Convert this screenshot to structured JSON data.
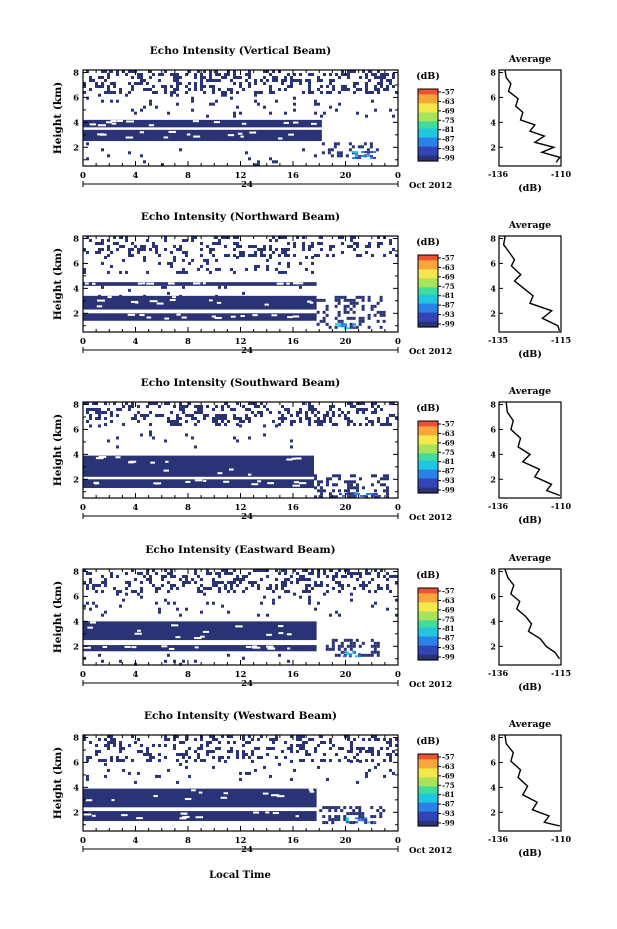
{
  "figure": {
    "xlabel": "Local Time",
    "colorbar_unit": "(dB)",
    "colorbar_ticks": [
      "-57",
      "-63",
      "-69",
      "-75",
      "-81",
      "-87",
      "-93",
      "-99"
    ],
    "date_label": "Oct 2012",
    "day_label": "24",
    "palette": [
      "#2a3376",
      "#3344b6",
      "#2a82e8",
      "#21c6e1",
      "#3fdc9e",
      "#a8e35a",
      "#f5e84a",
      "#f7a63b",
      "#ee5233"
    ]
  },
  "chart_data": [
    {
      "type": "heatmap",
      "title": "Echo Intensity (Vertical Beam)",
      "ylabel": "Height (km)",
      "x_ticks": [
        "0",
        "4",
        "8",
        "12",
        "16",
        "20",
        "0"
      ],
      "y_ticks": [
        "2",
        "4",
        "6",
        "8"
      ],
      "xlim": [
        0,
        24
      ],
      "ylim": [
        0.5,
        8.2
      ],
      "solid_bands": [
        [
          2.5,
          3.4,
          0,
          18.2
        ],
        [
          3.6,
          4.2,
          0,
          18.2
        ]
      ],
      "scatter_bands": [
        [
          6.3,
          8.2,
          0,
          24,
          0.33
        ],
        [
          4.4,
          6.3,
          0,
          24,
          0.05
        ],
        [
          1.2,
          2.4,
          18.2,
          22.5,
          0.35
        ],
        [
          0.5,
          2.4,
          0,
          18.2,
          0.03
        ]
      ],
      "hot_spot": [
        20.5,
        22.3,
        1.2,
        1.7
      ],
      "profile": {
        "title": "Average",
        "xlabel": "(dB)",
        "x_ticks": [
          "-136",
          "-110"
        ],
        "y_ticks": [
          "2",
          "4",
          "6",
          "8"
        ],
        "xlim": [
          -136,
          -110
        ],
        "ylim": [
          0.5,
          8.2
        ],
        "points": [
          [
            -133.5,
            8.2
          ],
          [
            -133,
            7.6
          ],
          [
            -131,
            7.1
          ],
          [
            -132,
            6.5
          ],
          [
            -128,
            5.9
          ],
          [
            -129,
            5.3
          ],
          [
            -126,
            4.8
          ],
          [
            -127,
            4.2
          ],
          [
            -121,
            3.8
          ],
          [
            -123,
            3.3
          ],
          [
            -117,
            2.9
          ],
          [
            -121,
            2.4
          ],
          [
            -113,
            2.0
          ],
          [
            -118,
            1.6
          ],
          [
            -110.5,
            1.2
          ],
          [
            -112,
            0.8
          ]
        ]
      }
    },
    {
      "type": "heatmap",
      "title": "Echo Intensity (Northward Beam)",
      "ylabel": "Height (km)",
      "x_ticks": [
        "0",
        "4",
        "8",
        "12",
        "16",
        "20",
        "0"
      ],
      "y_ticks": [
        "2",
        "4",
        "6",
        "8"
      ],
      "xlim": [
        0,
        24
      ],
      "ylim": [
        0.5,
        8.2
      ],
      "solid_bands": [
        [
          1.4,
          2.0,
          0,
          17.8
        ],
        [
          2.3,
          3.4,
          0,
          17.8
        ],
        [
          4.2,
          4.5,
          0,
          17.8
        ]
      ],
      "scatter_bands": [
        [
          6.6,
          8.2,
          0,
          24,
          0.25
        ],
        [
          5.2,
          6.6,
          0,
          17.8,
          0.12
        ],
        [
          0.8,
          3.4,
          17.8,
          23,
          0.3
        ],
        [
          3.4,
          4.2,
          0,
          17.8,
          0.05
        ]
      ],
      "hot_spot": [
        19.2,
        20.8,
        0.8,
        1.2
      ],
      "profile": {
        "title": "Average",
        "xlabel": "(dB)",
        "x_ticks": [
          "-135",
          "-115"
        ],
        "y_ticks": [
          "2",
          "4",
          "6",
          "8"
        ],
        "xlim": [
          -135,
          -115
        ],
        "ylim": [
          0.5,
          8.2
        ],
        "points": [
          [
            -133,
            8.2
          ],
          [
            -133.5,
            7.5
          ],
          [
            -132,
            7.0
          ],
          [
            -130,
            6.3
          ],
          [
            -131,
            5.8
          ],
          [
            -128,
            5.1
          ],
          [
            -130,
            4.6
          ],
          [
            -127,
            4.0
          ],
          [
            -124,
            3.4
          ],
          [
            -125,
            2.8
          ],
          [
            -118,
            2.2
          ],
          [
            -121,
            1.6
          ],
          [
            -116,
            1.0
          ],
          [
            -115.5,
            0.6
          ]
        ]
      }
    },
    {
      "type": "heatmap",
      "title": "Echo Intensity (Southward Beam)",
      "ylabel": "Height (km)",
      "x_ticks": [
        "0",
        "4",
        "8",
        "12",
        "16",
        "20",
        "0"
      ],
      "y_ticks": [
        "2",
        "4",
        "6",
        "8"
      ],
      "xlim": [
        0,
        24
      ],
      "ylim": [
        0.5,
        8.2
      ],
      "solid_bands": [
        [
          1.3,
          2.0,
          0,
          17.6
        ],
        [
          2.2,
          3.9,
          0,
          17.6
        ]
      ],
      "scatter_bands": [
        [
          6.4,
          8.2,
          0,
          24,
          0.3
        ],
        [
          4.5,
          6.4,
          0,
          17.6,
          0.04
        ],
        [
          0.7,
          2.4,
          17.6,
          23.5,
          0.3
        ]
      ],
      "hot_spot": [
        19.5,
        22.5,
        0.6,
        0.9
      ],
      "profile": {
        "title": "Average",
        "xlabel": "(dB)",
        "x_ticks": [
          "-136",
          "-110"
        ],
        "y_ticks": [
          "2",
          "4",
          "6",
          "8"
        ],
        "xlim": [
          -136,
          -110
        ],
        "ylim": [
          0.5,
          8.2
        ],
        "points": [
          [
            -133,
            8.2
          ],
          [
            -132.5,
            7.4
          ],
          [
            -130,
            6.7
          ],
          [
            -131,
            6.0
          ],
          [
            -127,
            5.3
          ],
          [
            -128,
            4.6
          ],
          [
            -123,
            4.0
          ],
          [
            -126,
            3.4
          ],
          [
            -119,
            2.8
          ],
          [
            -121,
            2.2
          ],
          [
            -114,
            1.6
          ],
          [
            -116,
            1.1
          ],
          [
            -110.5,
            0.7
          ]
        ]
      }
    },
    {
      "type": "heatmap",
      "title": "Echo Intensity (Eastward Beam)",
      "ylabel": "Height (km)",
      "x_ticks": [
        "0",
        "4",
        "8",
        "12",
        "16",
        "20",
        "0"
      ],
      "y_ticks": [
        "2",
        "4",
        "6",
        "8"
      ],
      "xlim": [
        0,
        24
      ],
      "ylim": [
        0.5,
        8.2
      ],
      "solid_bands": [
        [
          1.6,
          2.1,
          0,
          17.8
        ],
        [
          2.5,
          4.0,
          0,
          17.8
        ]
      ],
      "scatter_bands": [
        [
          6.3,
          8.2,
          0,
          24,
          0.28
        ],
        [
          4.4,
          6.3,
          0,
          24,
          0.05
        ],
        [
          1.2,
          2.6,
          18.5,
          22.5,
          0.45
        ],
        [
          0.6,
          1.4,
          0,
          17.8,
          0.06
        ]
      ],
      "hot_spot": [
        19.8,
        21.2,
        1.2,
        1.6
      ],
      "profile": {
        "title": "Average",
        "xlabel": "(dB)",
        "x_ticks": [
          "-136",
          "-115"
        ],
        "y_ticks": [
          "2",
          "4",
          "6",
          "8"
        ],
        "xlim": [
          -136,
          -115
        ],
        "ylim": [
          0.5,
          8.2
        ],
        "points": [
          [
            -134,
            8.2
          ],
          [
            -133,
            7.5
          ],
          [
            -131,
            6.9
          ],
          [
            -132,
            6.2
          ],
          [
            -129,
            5.6
          ],
          [
            -130,
            5.0
          ],
          [
            -127,
            4.4
          ],
          [
            -125,
            3.8
          ],
          [
            -126,
            3.2
          ],
          [
            -122,
            2.6
          ],
          [
            -120,
            2.0
          ],
          [
            -117,
            1.5
          ],
          [
            -115.5,
            1.0
          ]
        ]
      }
    },
    {
      "type": "heatmap",
      "title": "Echo Intensity (Westward Beam)",
      "ylabel": "Height (km)",
      "x_ticks": [
        "0",
        "4",
        "8",
        "12",
        "16",
        "20",
        "0"
      ],
      "y_ticks": [
        "2",
        "4",
        "6",
        "8"
      ],
      "xlim": [
        0,
        24
      ],
      "ylim": [
        0.5,
        8.2
      ],
      "solid_bands": [
        [
          1.3,
          2.1,
          0,
          17.8
        ],
        [
          2.4,
          3.9,
          0,
          17.8
        ]
      ],
      "scatter_bands": [
        [
          6.2,
          8.2,
          0,
          24,
          0.28
        ],
        [
          4.4,
          6.2,
          0,
          24,
          0.06
        ],
        [
          1.1,
          2.5,
          18.0,
          23,
          0.45
        ]
      ],
      "hot_spot": [
        19.8,
        22.2,
        1.2,
        1.6
      ],
      "profile": {
        "title": "Average",
        "xlabel": "(dB)",
        "x_ticks": [
          "-136",
          "-110"
        ],
        "y_ticks": [
          "2",
          "4",
          "6",
          "8"
        ],
        "xlim": [
          -136,
          -110
        ],
        "ylim": [
          0.5,
          8.2
        ],
        "points": [
          [
            -133.5,
            8.2
          ],
          [
            -133,
            7.5
          ],
          [
            -130,
            6.8
          ],
          [
            -131,
            6.1
          ],
          [
            -127,
            5.4
          ],
          [
            -128,
            4.8
          ],
          [
            -124,
            4.1
          ],
          [
            -126,
            3.4
          ],
          [
            -120,
            2.8
          ],
          [
            -122,
            2.2
          ],
          [
            -115,
            1.7
          ],
          [
            -117,
            1.2
          ],
          [
            -110.5,
            0.9
          ]
        ]
      }
    }
  ]
}
